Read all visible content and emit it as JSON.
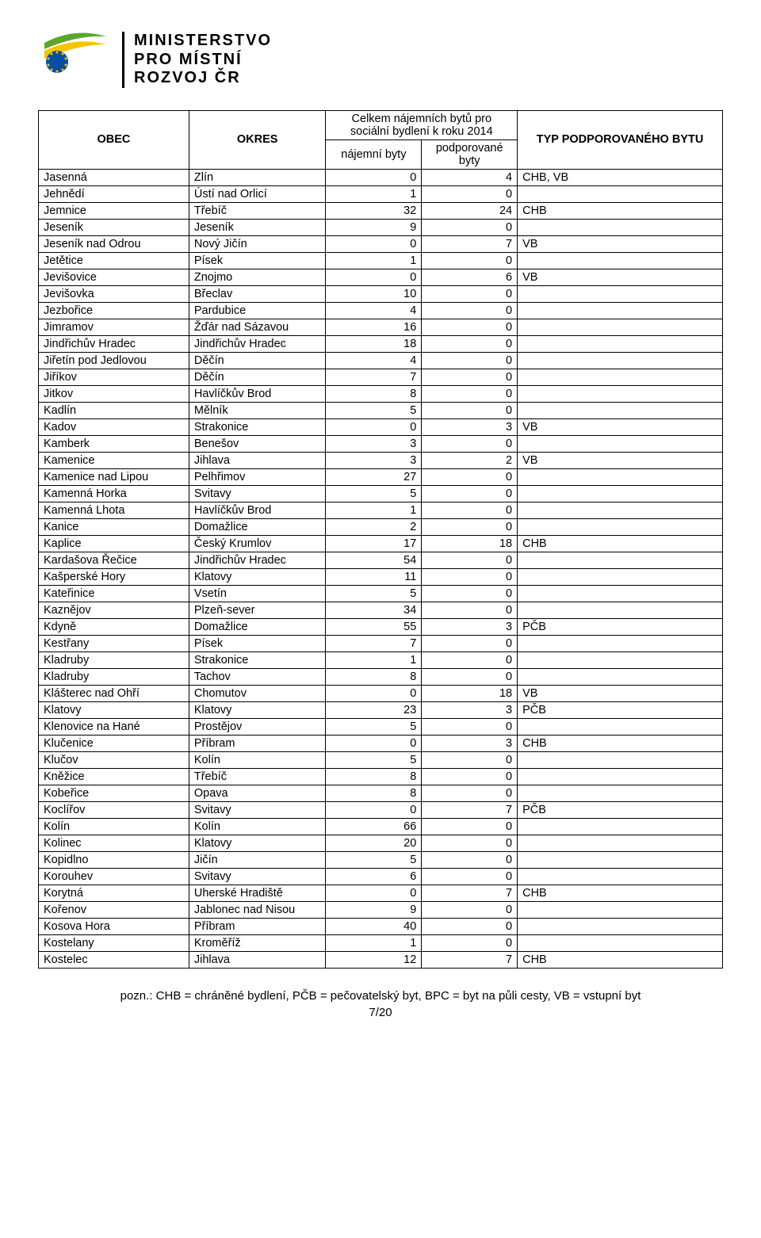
{
  "logo": {
    "line1": "MINISTERSTVO",
    "line2": "PRO MÍSTNÍ",
    "line3": "ROZVOJ ČR",
    "swoosh_green": "#5aa62f",
    "swoosh_yellow": "#f6c400",
    "ring_blue": "#0a4ea2",
    "star_yellow": "#f6c400"
  },
  "headers": {
    "obec": "OBEC",
    "okres": "OKRES",
    "group": "Celkem nájemních bytů pro sociální bydlení k roku 2014",
    "najemni": "nájemní byty",
    "podporovane": "podporované byty",
    "typ": "TYP PODPOROVANÉHO BYTU"
  },
  "rows": [
    {
      "obec": "Jasenná",
      "okres": "Zlín",
      "naj": "0",
      "pod": "4",
      "typ": "CHB, VB"
    },
    {
      "obec": "Jehnědí",
      "okres": "Ústí nad Orlicí",
      "naj": "1",
      "pod": "0",
      "typ": ""
    },
    {
      "obec": "Jemnice",
      "okres": "Třebíč",
      "naj": "32",
      "pod": "24",
      "typ": "CHB"
    },
    {
      "obec": "Jeseník",
      "okres": "Jeseník",
      "naj": "9",
      "pod": "0",
      "typ": ""
    },
    {
      "obec": "Jeseník nad Odrou",
      "okres": "Nový Jičín",
      "naj": "0",
      "pod": "7",
      "typ": "VB"
    },
    {
      "obec": "Jetětice",
      "okres": "Písek",
      "naj": "1",
      "pod": "0",
      "typ": ""
    },
    {
      "obec": "Jevišovice",
      "okres": "Znojmo",
      "naj": "0",
      "pod": "6",
      "typ": "VB"
    },
    {
      "obec": "Jevišovka",
      "okres": "Břeclav",
      "naj": "10",
      "pod": "0",
      "typ": ""
    },
    {
      "obec": "Jezbořice",
      "okres": "Pardubice",
      "naj": "4",
      "pod": "0",
      "typ": ""
    },
    {
      "obec": "Jimramov",
      "okres": "Žďár nad Sázavou",
      "naj": "16",
      "pod": "0",
      "typ": ""
    },
    {
      "obec": "Jindřichův Hradec",
      "okres": "Jindřichův Hradec",
      "naj": "18",
      "pod": "0",
      "typ": ""
    },
    {
      "obec": "Jiřetín pod Jedlovou",
      "okres": "Děčín",
      "naj": "4",
      "pod": "0",
      "typ": ""
    },
    {
      "obec": "Jiříkov",
      "okres": "Děčín",
      "naj": "7",
      "pod": "0",
      "typ": ""
    },
    {
      "obec": "Jitkov",
      "okres": "Havlíčkův Brod",
      "naj": "8",
      "pod": "0",
      "typ": ""
    },
    {
      "obec": "Kadlín",
      "okres": "Mělník",
      "naj": "5",
      "pod": "0",
      "typ": ""
    },
    {
      "obec": "Kadov",
      "okres": "Strakonice",
      "naj": "0",
      "pod": "3",
      "typ": "VB"
    },
    {
      "obec": "Kamberk",
      "okres": "Benešov",
      "naj": "3",
      "pod": "0",
      "typ": ""
    },
    {
      "obec": "Kamenice",
      "okres": "Jihlava",
      "naj": "3",
      "pod": "2",
      "typ": "VB"
    },
    {
      "obec": "Kamenice nad Lipou",
      "okres": "Pelhřimov",
      "naj": "27",
      "pod": "0",
      "typ": ""
    },
    {
      "obec": "Kamenná Horka",
      "okres": "Svitavy",
      "naj": "5",
      "pod": "0",
      "typ": ""
    },
    {
      "obec": "Kamenná Lhota",
      "okres": "Havlíčkův Brod",
      "naj": "1",
      "pod": "0",
      "typ": ""
    },
    {
      "obec": "Kanice",
      "okres": "Domažlice",
      "naj": "2",
      "pod": "0",
      "typ": ""
    },
    {
      "obec": "Kaplice",
      "okres": "Český Krumlov",
      "naj": "17",
      "pod": "18",
      "typ": "CHB"
    },
    {
      "obec": "Kardašova Řečice",
      "okres": "Jindřichův Hradec",
      "naj": "54",
      "pod": "0",
      "typ": ""
    },
    {
      "obec": "Kašperské Hory",
      "okres": "Klatovy",
      "naj": "11",
      "pod": "0",
      "typ": ""
    },
    {
      "obec": "Kateřinice",
      "okres": "Vsetín",
      "naj": "5",
      "pod": "0",
      "typ": ""
    },
    {
      "obec": "Kaznějov",
      "okres": "Plzeň-sever",
      "naj": "34",
      "pod": "0",
      "typ": ""
    },
    {
      "obec": "Kdyně",
      "okres": "Domažlice",
      "naj": "55",
      "pod": "3",
      "typ": "PČB"
    },
    {
      "obec": "Kestřany",
      "okres": "Písek",
      "naj": "7",
      "pod": "0",
      "typ": ""
    },
    {
      "obec": "Kladruby",
      "okres": "Strakonice",
      "naj": "1",
      "pod": "0",
      "typ": ""
    },
    {
      "obec": "Kladruby",
      "okres": "Tachov",
      "naj": "8",
      "pod": "0",
      "typ": ""
    },
    {
      "obec": "Klášterec nad Ohří",
      "okres": "Chomutov",
      "naj": "0",
      "pod": "18",
      "typ": "VB"
    },
    {
      "obec": "Klatovy",
      "okres": "Klatovy",
      "naj": "23",
      "pod": "3",
      "typ": "PČB"
    },
    {
      "obec": "Klenovice na Hané",
      "okres": "Prostějov",
      "naj": "5",
      "pod": "0",
      "typ": ""
    },
    {
      "obec": "Klučenice",
      "okres": "Příbram",
      "naj": "0",
      "pod": "3",
      "typ": "CHB"
    },
    {
      "obec": "Klučov",
      "okres": "Kolín",
      "naj": "5",
      "pod": "0",
      "typ": ""
    },
    {
      "obec": "Kněžice",
      "okres": "Třebíč",
      "naj": "8",
      "pod": "0",
      "typ": ""
    },
    {
      "obec": "Kobeřice",
      "okres": "Opava",
      "naj": "8",
      "pod": "0",
      "typ": ""
    },
    {
      "obec": "Koclířov",
      "okres": "Svitavy",
      "naj": "0",
      "pod": "7",
      "typ": "PČB"
    },
    {
      "obec": "Kolín",
      "okres": "Kolín",
      "naj": "66",
      "pod": "0",
      "typ": ""
    },
    {
      "obec": "Kolinec",
      "okres": "Klatovy",
      "naj": "20",
      "pod": "0",
      "typ": ""
    },
    {
      "obec": "Kopidlno",
      "okres": "Jičín",
      "naj": "5",
      "pod": "0",
      "typ": ""
    },
    {
      "obec": "Korouhev",
      "okres": "Svitavy",
      "naj": "6",
      "pod": "0",
      "typ": ""
    },
    {
      "obec": "Korytná",
      "okres": "Uherské Hradiště",
      "naj": "0",
      "pod": "7",
      "typ": "CHB"
    },
    {
      "obec": "Kořenov",
      "okres": "Jablonec nad Nisou",
      "naj": "9",
      "pod": "0",
      "typ": ""
    },
    {
      "obec": "Kosova Hora",
      "okres": "Příbram",
      "naj": "40",
      "pod": "0",
      "typ": ""
    },
    {
      "obec": "Kostelany",
      "okres": "Kroměříž",
      "naj": "1",
      "pod": "0",
      "typ": ""
    },
    {
      "obec": "Kostelec",
      "okres": "Jihlava",
      "naj": "12",
      "pod": "7",
      "typ": "CHB"
    }
  ],
  "footnote": "pozn.: CHB = chráněné bydlení, PČB = pečovatelský byt, BPC = byt na půli cesty, VB = vstupní byt",
  "pagenum": "7/20",
  "style": {
    "font_body": "14.5",
    "border_color": "#000000",
    "bg": "#ffffff"
  }
}
